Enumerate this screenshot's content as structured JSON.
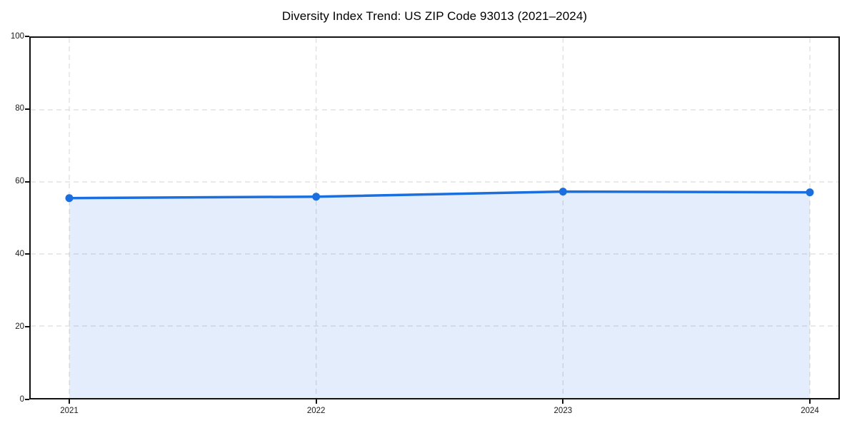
{
  "chart_data": {
    "type": "area",
    "title": "Diversity Index Trend: US ZIP Code 93013 (2021–2024)",
    "x": [
      2021,
      2022,
      2023,
      2024
    ],
    "series": [
      {
        "name": "Diversity Index",
        "values": [
          55.5,
          55.9,
          57.3,
          57.1
        ]
      }
    ],
    "xlabel": "",
    "ylabel": "",
    "ylim": [
      0,
      100
    ],
    "yticks": [
      0,
      20,
      40,
      60,
      80,
      100
    ],
    "grid": true,
    "grid_style": "dashed",
    "legend_position": "none",
    "colors": {
      "line": "#1b6ede",
      "marker": "#1b6ede",
      "fill": "#1b6ede",
      "fill_alpha": 0.12,
      "grid": "#dcdcdc",
      "spine": "#111111",
      "tick_text": "#1a1a1a",
      "title_text": "#000000",
      "background": "#ffffff"
    }
  }
}
